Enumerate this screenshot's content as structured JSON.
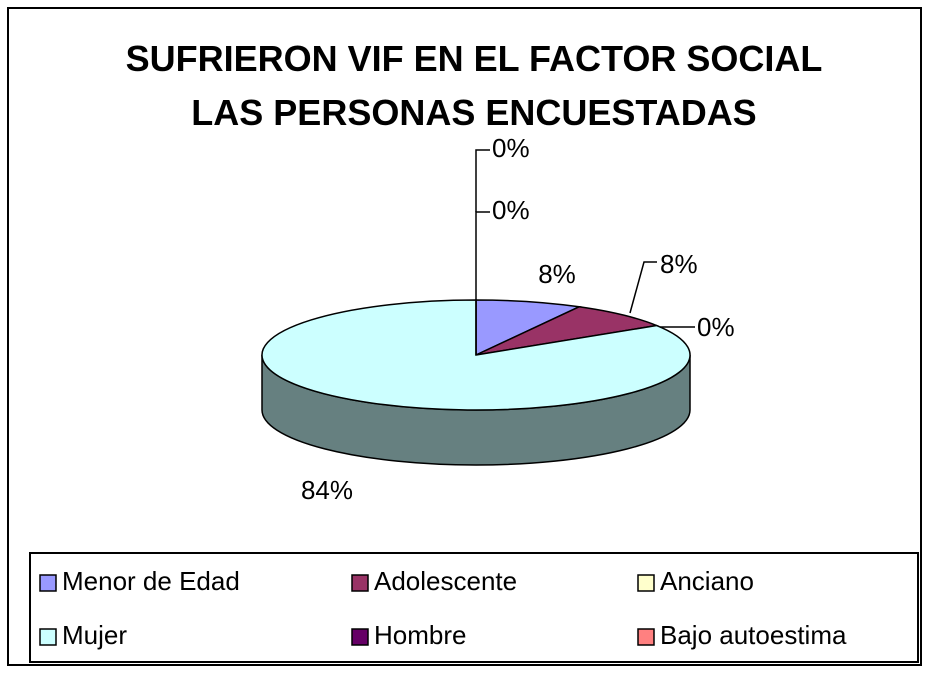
{
  "chart_data": {
    "type": "pie3d",
    "title": "SUFRIERON VIF EN EL FACTOR SOCIAL LAS PERSONAS ENCUESTADAS",
    "categories": [
      "Menor de Edad",
      "Adolescente",
      "Anciano",
      "Mujer",
      "Hombre",
      "Bajo autoestima"
    ],
    "values": [
      8,
      8,
      0,
      84,
      0,
      0
    ],
    "value_labels": [
      "8%",
      "8%",
      "0%",
      "84%",
      "0%",
      "0%"
    ],
    "colors": [
      "#9999ff",
      "#993366",
      "#ffffcc",
      "#ccffff",
      "#660066",
      "#ff8080"
    ],
    "legend": "bottom"
  }
}
